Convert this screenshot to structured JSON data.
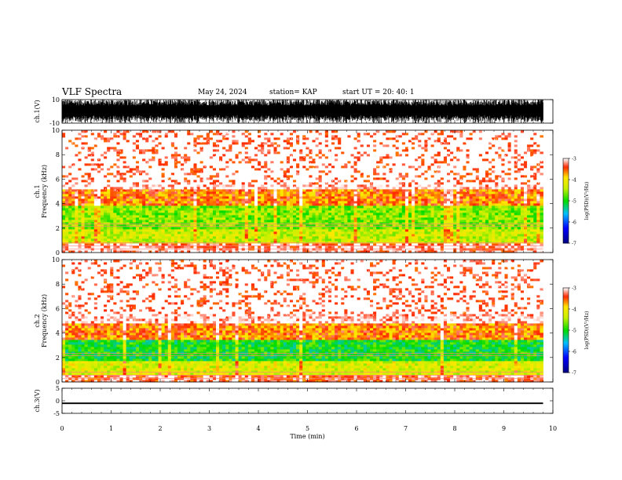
{
  "header": {
    "title": "VLF Spectra",
    "date": "May 24, 2024",
    "station": "station= KAP",
    "start_ut": "start  UT  =   20: 40: 1"
  },
  "colors": {
    "spectrum_low": "#000080",
    "spectrum_mid_low": "#00d000",
    "spectrum_mid": "#e8f000",
    "spectrum_high": "#ff0000",
    "spectrum_top": "#ffffff",
    "waveform": "#000000"
  },
  "chart_data": [
    {
      "type": "line",
      "panel": "ch1-waveform",
      "ylabel": "ch.1(V)",
      "ylim": [
        -10,
        10
      ],
      "yticks": [
        "10",
        "-10"
      ],
      "xlim": [
        0,
        10
      ],
      "x_extent_min": 9.8,
      "amplitude_description": "broadband noise filling most of +/-10 V range"
    },
    {
      "type": "heatmap",
      "panel": "ch1-spectrogram",
      "ylabel": "ch.1\nFrequency  (kHz)",
      "ylim": [
        0,
        10
      ],
      "yticks": [
        "0",
        "2",
        "4",
        "6",
        "8",
        "10"
      ],
      "xlim": [
        0,
        10
      ],
      "x_extent_min": 9.8,
      "colorbar": {
        "label": "log(PSD)(V²/Hz)",
        "range": [
          -7,
          -3
        ],
        "ticks": [
          "-3",
          "-4",
          "-5",
          "-6",
          "-7"
        ]
      },
      "bands": [
        {
          "f_min": 0.0,
          "f_max": 0.8,
          "log_psd": -3.2
        },
        {
          "f_min": 0.8,
          "f_max": 2.0,
          "log_psd": -4.3
        },
        {
          "f_min": 2.0,
          "f_max": 3.8,
          "log_psd": -4.6
        },
        {
          "f_min": 3.8,
          "f_max": 5.2,
          "log_psd": -3.6
        },
        {
          "f_min": 5.2,
          "f_max": 10.0,
          "log_psd": -3.0
        }
      ]
    },
    {
      "type": "heatmap",
      "panel": "ch2-spectrogram",
      "ylabel": "ch.2\nFrequency  (kHz)",
      "ylim": [
        0,
        10
      ],
      "yticks": [
        "0",
        "2",
        "4",
        "6",
        "8",
        "10"
      ],
      "xlim": [
        0,
        10
      ],
      "x_extent_min": 9.8,
      "colorbar": {
        "label": "log(PSD)(V²/Hz)",
        "range": [
          -7,
          -3
        ],
        "ticks": [
          "-3",
          "-4",
          "-5",
          "-6",
          "-7"
        ]
      },
      "bands": [
        {
          "f_min": 0.0,
          "f_max": 0.6,
          "log_psd": -3.3
        },
        {
          "f_min": 0.6,
          "f_max": 1.8,
          "log_psd": -4.2
        },
        {
          "f_min": 1.8,
          "f_max": 3.4,
          "log_psd": -5.0
        },
        {
          "f_min": 3.4,
          "f_max": 4.8,
          "log_psd": -3.6
        },
        {
          "f_min": 4.8,
          "f_max": 10.0,
          "log_psd": -3.0
        }
      ]
    },
    {
      "type": "line",
      "panel": "ch3-waveform",
      "ylabel": "ch.3(V)",
      "ylim": [
        -5,
        5
      ],
      "yticks": [
        "5",
        "0",
        "-5"
      ],
      "xlim": [
        0,
        10
      ],
      "x_extent_min": 9.8,
      "level": -1.0,
      "band_halfwidth": 0.3
    }
  ],
  "xaxis": {
    "label": "Time  (min)",
    "ticks": [
      "0",
      "1",
      "2",
      "3",
      "4",
      "5",
      "6",
      "7",
      "8",
      "9",
      "10"
    ]
  }
}
